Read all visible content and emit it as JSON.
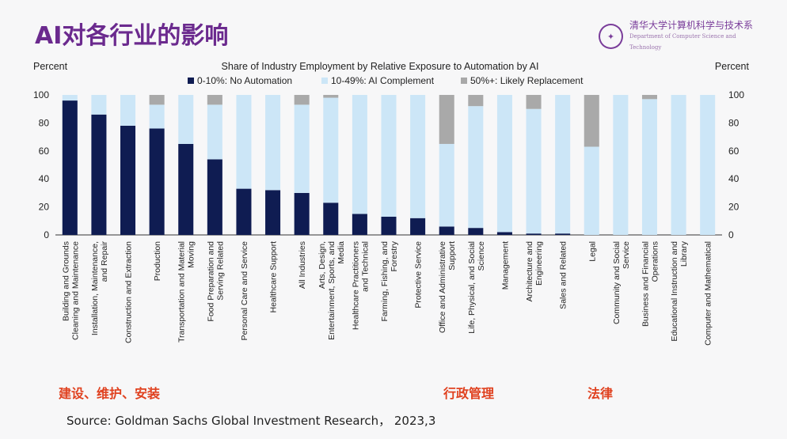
{
  "slide": {
    "title": "AI对各行业的影响",
    "logo_text": "清华大学计算机科学与技术系",
    "logo_subtext": "Department of Computer Science and Technology",
    "source": "Source: Goldman Sachs Global Investment Research， 2023,3",
    "notes": [
      "建设、维护、安装",
      "行政管理",
      "法律"
    ]
  },
  "colors": {
    "no_automation": "#0f1c52",
    "ai_complement": "#cce6f7",
    "likely_replacement": "#a9a9a9",
    "title": "#6b2a8e",
    "note": "#e0411f"
  },
  "chart_data": {
    "type": "bar",
    "stacked": true,
    "title": "Share of Industry Employment by Relative Exposure to Automation by AI",
    "ylabel_left": "Percent",
    "ylabel_right": "Percent",
    "ylim": [
      0,
      100
    ],
    "yticks": [
      0,
      20,
      40,
      60,
      80,
      100
    ],
    "legend_position": "top",
    "categories": [
      "Building and Grounds Cleaning and Maintenance",
      "Installation, Maintenance, and Repair",
      "Construction and Extraction",
      "Production",
      "Transportation and Material Moving",
      "Food Preparation and Serving Related",
      "Personal Care and Service",
      "Healthcare Support",
      "All Industries",
      "Arts, Design, Entertainment, Sports, and Media",
      "Healthcare Practitioners and Technical",
      "Farming, Fishing, and Forestry",
      "Protective Service",
      "Office and Administrative Support",
      "Life, Physical, and Social Science",
      "Management",
      "Architecture and Engineering",
      "Sales and Related",
      "Legal",
      "Community and Social Service",
      "Business and Financial Operations",
      "Educational Instruction and Library",
      "Computer and Mathematical"
    ],
    "series": [
      {
        "name": "0-10%: No Automation",
        "values": [
          96,
          86,
          78,
          76,
          65,
          54,
          33,
          32,
          30,
          23,
          15,
          13,
          12,
          6,
          5,
          2,
          1,
          1,
          0,
          0,
          0,
          0,
          0
        ]
      },
      {
        "name": "10-49%: AI Complement",
        "values": [
          4,
          14,
          22,
          17,
          35,
          39,
          67,
          68,
          63,
          75,
          85,
          87,
          88,
          59,
          87,
          98,
          89,
          99,
          63,
          100,
          97,
          100,
          100
        ]
      },
      {
        "name": "50%+: Likely Replacement",
        "values": [
          0,
          0,
          0,
          7,
          0,
          7,
          0,
          0,
          7,
          2,
          0,
          0,
          0,
          35,
          8,
          0,
          10,
          0,
          37,
          0,
          3,
          0,
          0
        ]
      }
    ]
  }
}
